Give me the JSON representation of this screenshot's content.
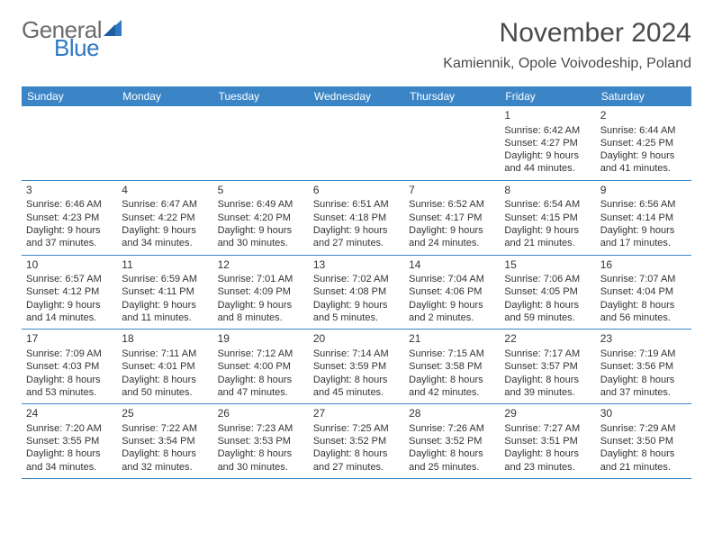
{
  "logo": {
    "general": "General",
    "blue": "Blue",
    "shape_color": "#2f78c3"
  },
  "header": {
    "month_title": "November 2024",
    "location": "Kamiennik, Opole Voivodeship, Poland"
  },
  "colors": {
    "header_bg": "#3b85c7",
    "header_text": "#ffffff",
    "cell_text": "#333333"
  },
  "day_names": [
    "Sunday",
    "Monday",
    "Tuesday",
    "Wednesday",
    "Thursday",
    "Friday",
    "Saturday"
  ],
  "weeks": [
    [
      null,
      null,
      null,
      null,
      null,
      {
        "num": "1",
        "sunrise": "Sunrise: 6:42 AM",
        "sunset": "Sunset: 4:27 PM",
        "daylight1": "Daylight: 9 hours",
        "daylight2": "and 44 minutes."
      },
      {
        "num": "2",
        "sunrise": "Sunrise: 6:44 AM",
        "sunset": "Sunset: 4:25 PM",
        "daylight1": "Daylight: 9 hours",
        "daylight2": "and 41 minutes."
      }
    ],
    [
      {
        "num": "3",
        "sunrise": "Sunrise: 6:46 AM",
        "sunset": "Sunset: 4:23 PM",
        "daylight1": "Daylight: 9 hours",
        "daylight2": "and 37 minutes."
      },
      {
        "num": "4",
        "sunrise": "Sunrise: 6:47 AM",
        "sunset": "Sunset: 4:22 PM",
        "daylight1": "Daylight: 9 hours",
        "daylight2": "and 34 minutes."
      },
      {
        "num": "5",
        "sunrise": "Sunrise: 6:49 AM",
        "sunset": "Sunset: 4:20 PM",
        "daylight1": "Daylight: 9 hours",
        "daylight2": "and 30 minutes."
      },
      {
        "num": "6",
        "sunrise": "Sunrise: 6:51 AM",
        "sunset": "Sunset: 4:18 PM",
        "daylight1": "Daylight: 9 hours",
        "daylight2": "and 27 minutes."
      },
      {
        "num": "7",
        "sunrise": "Sunrise: 6:52 AM",
        "sunset": "Sunset: 4:17 PM",
        "daylight1": "Daylight: 9 hours",
        "daylight2": "and 24 minutes."
      },
      {
        "num": "8",
        "sunrise": "Sunrise: 6:54 AM",
        "sunset": "Sunset: 4:15 PM",
        "daylight1": "Daylight: 9 hours",
        "daylight2": "and 21 minutes."
      },
      {
        "num": "9",
        "sunrise": "Sunrise: 6:56 AM",
        "sunset": "Sunset: 4:14 PM",
        "daylight1": "Daylight: 9 hours",
        "daylight2": "and 17 minutes."
      }
    ],
    [
      {
        "num": "10",
        "sunrise": "Sunrise: 6:57 AM",
        "sunset": "Sunset: 4:12 PM",
        "daylight1": "Daylight: 9 hours",
        "daylight2": "and 14 minutes."
      },
      {
        "num": "11",
        "sunrise": "Sunrise: 6:59 AM",
        "sunset": "Sunset: 4:11 PM",
        "daylight1": "Daylight: 9 hours",
        "daylight2": "and 11 minutes."
      },
      {
        "num": "12",
        "sunrise": "Sunrise: 7:01 AM",
        "sunset": "Sunset: 4:09 PM",
        "daylight1": "Daylight: 9 hours",
        "daylight2": "and 8 minutes."
      },
      {
        "num": "13",
        "sunrise": "Sunrise: 7:02 AM",
        "sunset": "Sunset: 4:08 PM",
        "daylight1": "Daylight: 9 hours",
        "daylight2": "and 5 minutes."
      },
      {
        "num": "14",
        "sunrise": "Sunrise: 7:04 AM",
        "sunset": "Sunset: 4:06 PM",
        "daylight1": "Daylight: 9 hours",
        "daylight2": "and 2 minutes."
      },
      {
        "num": "15",
        "sunrise": "Sunrise: 7:06 AM",
        "sunset": "Sunset: 4:05 PM",
        "daylight1": "Daylight: 8 hours",
        "daylight2": "and 59 minutes."
      },
      {
        "num": "16",
        "sunrise": "Sunrise: 7:07 AM",
        "sunset": "Sunset: 4:04 PM",
        "daylight1": "Daylight: 8 hours",
        "daylight2": "and 56 minutes."
      }
    ],
    [
      {
        "num": "17",
        "sunrise": "Sunrise: 7:09 AM",
        "sunset": "Sunset: 4:03 PM",
        "daylight1": "Daylight: 8 hours",
        "daylight2": "and 53 minutes."
      },
      {
        "num": "18",
        "sunrise": "Sunrise: 7:11 AM",
        "sunset": "Sunset: 4:01 PM",
        "daylight1": "Daylight: 8 hours",
        "daylight2": "and 50 minutes."
      },
      {
        "num": "19",
        "sunrise": "Sunrise: 7:12 AM",
        "sunset": "Sunset: 4:00 PM",
        "daylight1": "Daylight: 8 hours",
        "daylight2": "and 47 minutes."
      },
      {
        "num": "20",
        "sunrise": "Sunrise: 7:14 AM",
        "sunset": "Sunset: 3:59 PM",
        "daylight1": "Daylight: 8 hours",
        "daylight2": "and 45 minutes."
      },
      {
        "num": "21",
        "sunrise": "Sunrise: 7:15 AM",
        "sunset": "Sunset: 3:58 PM",
        "daylight1": "Daylight: 8 hours",
        "daylight2": "and 42 minutes."
      },
      {
        "num": "22",
        "sunrise": "Sunrise: 7:17 AM",
        "sunset": "Sunset: 3:57 PM",
        "daylight1": "Daylight: 8 hours",
        "daylight2": "and 39 minutes."
      },
      {
        "num": "23",
        "sunrise": "Sunrise: 7:19 AM",
        "sunset": "Sunset: 3:56 PM",
        "daylight1": "Daylight: 8 hours",
        "daylight2": "and 37 minutes."
      }
    ],
    [
      {
        "num": "24",
        "sunrise": "Sunrise: 7:20 AM",
        "sunset": "Sunset: 3:55 PM",
        "daylight1": "Daylight: 8 hours",
        "daylight2": "and 34 minutes."
      },
      {
        "num": "25",
        "sunrise": "Sunrise: 7:22 AM",
        "sunset": "Sunset: 3:54 PM",
        "daylight1": "Daylight: 8 hours",
        "daylight2": "and 32 minutes."
      },
      {
        "num": "26",
        "sunrise": "Sunrise: 7:23 AM",
        "sunset": "Sunset: 3:53 PM",
        "daylight1": "Daylight: 8 hours",
        "daylight2": "and 30 minutes."
      },
      {
        "num": "27",
        "sunrise": "Sunrise: 7:25 AM",
        "sunset": "Sunset: 3:52 PM",
        "daylight1": "Daylight: 8 hours",
        "daylight2": "and 27 minutes."
      },
      {
        "num": "28",
        "sunrise": "Sunrise: 7:26 AM",
        "sunset": "Sunset: 3:52 PM",
        "daylight1": "Daylight: 8 hours",
        "daylight2": "and 25 minutes."
      },
      {
        "num": "29",
        "sunrise": "Sunrise: 7:27 AM",
        "sunset": "Sunset: 3:51 PM",
        "daylight1": "Daylight: 8 hours",
        "daylight2": "and 23 minutes."
      },
      {
        "num": "30",
        "sunrise": "Sunrise: 7:29 AM",
        "sunset": "Sunset: 3:50 PM",
        "daylight1": "Daylight: 8 hours",
        "daylight2": "and 21 minutes."
      }
    ]
  ]
}
